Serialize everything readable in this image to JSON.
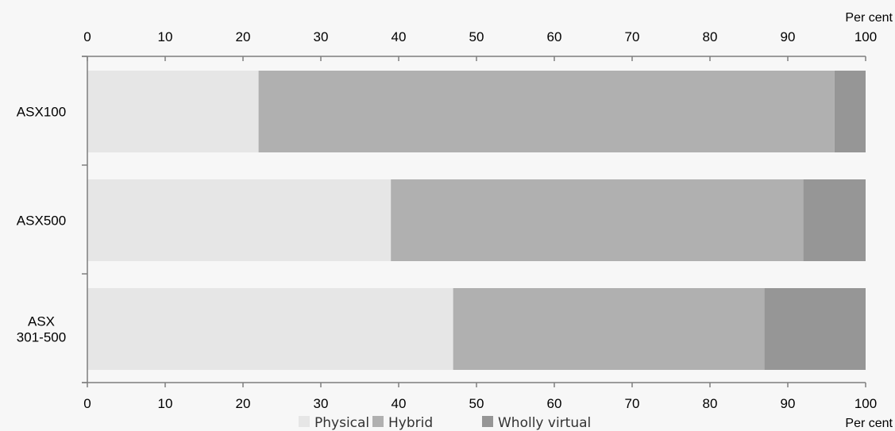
{
  "chart_data": {
    "type": "bar",
    "orientation": "horizontal",
    "stacked": true,
    "title": "",
    "unit_label": "Per cent",
    "categories": [
      [
        "ASX100"
      ],
      [
        "ASX500"
      ],
      [
        "ASX",
        "301-500"
      ]
    ],
    "series": [
      {
        "name": "Physical",
        "color": "#e6e6e6",
        "values": [
          22,
          39,
          47
        ]
      },
      {
        "name": "Hybrid",
        "color": "#b0b0b0",
        "values": [
          74,
          53,
          40
        ]
      },
      {
        "name": "Wholly virtual",
        "color": "#969696",
        "values": [
          4,
          8,
          13
        ]
      }
    ],
    "xlim": [
      0,
      100
    ],
    "xticks": [
      0,
      10,
      20,
      30,
      40,
      50,
      60,
      70,
      80,
      90,
      100
    ],
    "grid": false,
    "legend_position": "bottom"
  }
}
